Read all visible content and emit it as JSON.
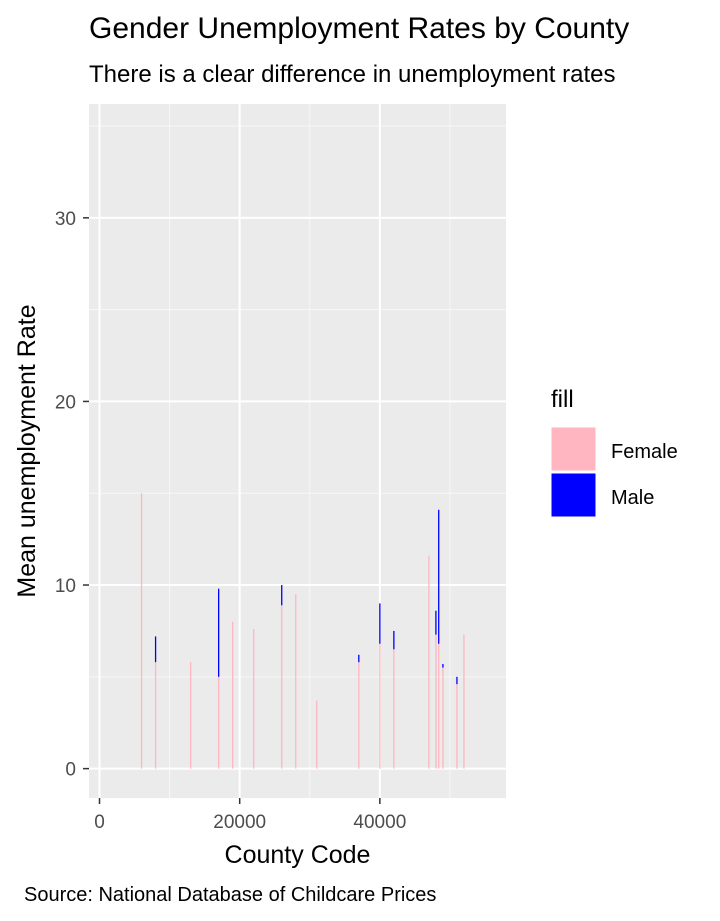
{
  "chart_data": {
    "type": "bar",
    "title": "Gender Unemployment Rates by County",
    "subtitle": "There is a clear difference in unemployment rates",
    "xlabel": "County Code",
    "ylabel": "Mean unemployment Rate",
    "caption": "Source: National Database of Childcare Prices",
    "xlim": [
      -1500,
      58000
    ],
    "ylim": [
      -1.6,
      36.2
    ],
    "x_ticks": [
      0,
      20000,
      40000
    ],
    "x_tick_labels": [
      "0",
      "20000",
      "40000"
    ],
    "y_ticks": [
      0,
      10,
      20,
      30
    ],
    "y_tick_labels": [
      "0",
      "10",
      "20",
      "30"
    ],
    "x_minor_ticks": [
      10000,
      30000,
      50000
    ],
    "y_minor_ticks": [
      5,
      15,
      25,
      35
    ],
    "grid": true,
    "position": "stacked",
    "legend": {
      "title": "fill",
      "placement": "right",
      "entries": [
        {
          "label": "Female",
          "color": "#FFB6C1"
        },
        {
          "label": "Male",
          "color": "#0000FF"
        }
      ]
    },
    "series": [
      {
        "name": "Female",
        "color": "#FFB6C1",
        "points": [
          {
            "x": 6000,
            "y": 15.0
          },
          {
            "x": 8000,
            "y": 5.8
          },
          {
            "x": 13000,
            "y": 5.8
          },
          {
            "x": 17000,
            "y": 5.0
          },
          {
            "x": 19000,
            "y": 8.0
          },
          {
            "x": 22000,
            "y": 7.6
          },
          {
            "x": 26000,
            "y": 8.9
          },
          {
            "x": 28000,
            "y": 9.5
          },
          {
            "x": 31000,
            "y": 3.7
          },
          {
            "x": 37000,
            "y": 5.8
          },
          {
            "x": 40000,
            "y": 6.8
          },
          {
            "x": 42000,
            "y": 6.5
          },
          {
            "x": 47000,
            "y": 11.6
          },
          {
            "x": 48000,
            "y": 7.3
          },
          {
            "x": 48400,
            "y": 6.8
          },
          {
            "x": 49000,
            "y": 5.5
          },
          {
            "x": 51000,
            "y": 4.6
          },
          {
            "x": 52000,
            "y": 7.3
          }
        ]
      },
      {
        "name": "Male",
        "color": "#0000FF",
        "points": [
          {
            "x": 8000,
            "y": 1.4
          },
          {
            "x": 17000,
            "y": 4.8
          },
          {
            "x": 26000,
            "y": 1.1
          },
          {
            "x": 37000,
            "y": 0.4
          },
          {
            "x": 40000,
            "y": 2.2
          },
          {
            "x": 42000,
            "y": 1.0
          },
          {
            "x": 48000,
            "y": 1.3
          },
          {
            "x": 48400,
            "y": 7.3
          },
          {
            "x": 49000,
            "y": 0.2
          },
          {
            "x": 51000,
            "y": 0.4
          }
        ]
      }
    ]
  }
}
